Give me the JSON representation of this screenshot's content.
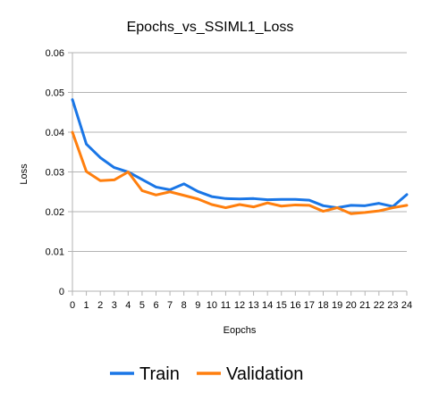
{
  "chart_data": {
    "type": "line",
    "title": "Epochs_vs_SSIML1_Loss",
    "xlabel": "Eopchs",
    "ylabel": "Loss",
    "x": [
      0,
      1,
      2,
      3,
      4,
      5,
      6,
      7,
      8,
      9,
      10,
      11,
      12,
      13,
      14,
      15,
      16,
      17,
      18,
      19,
      20,
      21,
      22,
      23,
      24
    ],
    "xlim": [
      0,
      24
    ],
    "ylim": [
      0,
      0.06
    ],
    "yticks": [
      "0",
      "0.01",
      "0.02",
      "0.03",
      "0.04",
      "0.05",
      "0.06"
    ],
    "ytick_values": [
      0,
      0.01,
      0.02,
      0.03,
      0.04,
      0.05,
      0.06
    ],
    "grid": "horizontal",
    "legend_position": "bottom",
    "series": [
      {
        "name": "Train",
        "color": "#1a76e6",
        "values": [
          0.0482,
          0.037,
          0.0336,
          0.0311,
          0.03,
          0.0281,
          0.0262,
          0.0255,
          0.027,
          0.0251,
          0.0238,
          0.0233,
          0.0232,
          0.0233,
          0.023,
          0.0231,
          0.0231,
          0.0229,
          0.0215,
          0.021,
          0.0216,
          0.0215,
          0.0221,
          0.0213,
          0.0243
        ]
      },
      {
        "name": "Validation",
        "color": "#ff7f0e",
        "values": [
          0.04,
          0.0301,
          0.0278,
          0.028,
          0.03,
          0.0253,
          0.0242,
          0.025,
          0.0241,
          0.0232,
          0.0218,
          0.021,
          0.0218,
          0.0212,
          0.0222,
          0.0214,
          0.0217,
          0.0216,
          0.0201,
          0.021,
          0.0195,
          0.0198,
          0.0202,
          0.021,
          0.0216
        ]
      }
    ]
  }
}
